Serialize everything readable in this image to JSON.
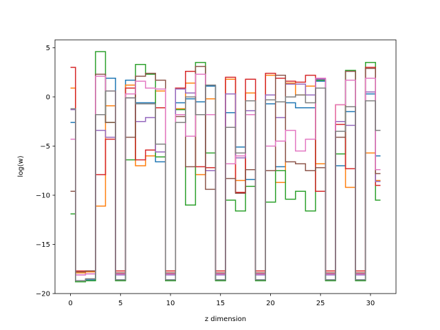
{
  "chart_data": {
    "type": "line",
    "step": "mid",
    "xlabel": "z dimension",
    "ylabel": "log(w)",
    "xlim": [
      -1.55,
      32.55
    ],
    "ylim": [
      -20,
      5.8
    ],
    "xticks": [
      0,
      5,
      10,
      15,
      20,
      25,
      30
    ],
    "yticks": [
      -20,
      -15,
      -10,
      -5,
      0,
      5
    ],
    "grid": false,
    "x": [
      0,
      1,
      2,
      3,
      4,
      5,
      6,
      7,
      8,
      9,
      10,
      11,
      12,
      13,
      14,
      15,
      16,
      17,
      18,
      19,
      20,
      21,
      22,
      23,
      24,
      25,
      26,
      27,
      28,
      29,
      30,
      31
    ],
    "series": [
      {
        "color": "#1f77b4",
        "values": [
          -2.6,
          -18.7,
          -18.6,
          -1.8,
          1.9,
          -18.6,
          1.7,
          -0.6,
          -0.6,
          -6.6,
          -18.6,
          -0.6,
          -0.2,
          -0.5,
          1.1,
          -18.6,
          -1.6,
          -5.1,
          -8.4,
          -18.6,
          -0.7,
          -7.1,
          -0.6,
          -1.1,
          -1.1,
          1.6,
          -18.6,
          -7.0,
          -1.5,
          -18.6,
          0.3,
          -6.0
        ]
      },
      {
        "color": "#ff7f0e",
        "values": [
          0.9,
          -17.9,
          -17.8,
          -11.1,
          -0.9,
          -18.0,
          1.2,
          -7.0,
          -6.0,
          0.6,
          -18.0,
          -1.2,
          1.4,
          -7.9,
          -0.2,
          -18.0,
          1.8,
          -8.5,
          0.4,
          -18.0,
          2.2,
          -8.7,
          1.4,
          0.2,
          1.1,
          -6.8,
          -18.0,
          -0.8,
          -9.2,
          -18.0,
          -5.7,
          -8.5
        ]
      },
      {
        "color": "#2ca02c",
        "values": [
          -11.9,
          -18.8,
          -18.7,
          4.6,
          -2.6,
          -18.7,
          -6.4,
          3.3,
          2.3,
          -6.1,
          -18.7,
          -1.3,
          -11.0,
          3.5,
          -5.7,
          -18.7,
          -10.5,
          -11.6,
          -9.1,
          -18.7,
          -10.7,
          -7.5,
          -10.4,
          -9.6,
          -11.6,
          1.7,
          -18.7,
          -5.8,
          2.7,
          -18.7,
          3.5,
          -10.5
        ]
      },
      {
        "color": "#d62728",
        "values": [
          3.0,
          -17.7,
          -17.7,
          -7.9,
          -4.3,
          -17.7,
          0.9,
          -6.4,
          -5.4,
          -1.1,
          -17.7,
          0.9,
          2.6,
          -7.1,
          -7.2,
          -17.7,
          2.0,
          -9.7,
          1.8,
          -17.7,
          2.4,
          1.9,
          1.6,
          1.5,
          2.2,
          -9.6,
          -17.7,
          -2.8,
          -7.3,
          -17.7,
          3.0,
          -9.0
        ]
      },
      {
        "color": "#9467bd",
        "values": [
          -1.3,
          -18.1,
          -18.0,
          -3.4,
          -4.1,
          -18.1,
          -0.1,
          -2.5,
          -2.1,
          -5.6,
          -18.1,
          0.8,
          0.4,
          -1.8,
          -7.5,
          -18.1,
          0.3,
          -6.2,
          -1.4,
          -18.1,
          0.2,
          -2.1,
          1.3,
          1.3,
          0.2,
          1.8,
          -18.1,
          -2.5,
          -2.9,
          -18.1,
          0.5,
          -8.6
        ]
      },
      {
        "color": "#8c564b",
        "values": [
          -9.6,
          -17.8,
          -17.7,
          2.3,
          -2.6,
          -17.9,
          -4.1,
          2.1,
          2.4,
          1.7,
          -17.9,
          -2.0,
          -7.1,
          3.1,
          -9.4,
          -17.9,
          -8.3,
          -9.8,
          -7.4,
          -17.9,
          -7.5,
          2.2,
          -6.6,
          -6.8,
          -7.5,
          -7.2,
          -17.9,
          -4.1,
          2.6,
          -17.9,
          2.9,
          -7.8
        ]
      },
      {
        "color": "#e377c2",
        "values": [
          -4.3,
          -18.1,
          -18.0,
          2.1,
          0.6,
          -18.0,
          0.3,
          1.6,
          0.9,
          0.8,
          -18.0,
          -1.8,
          -4.0,
          2.3,
          -1.8,
          -18.0,
          -6.8,
          -6.0,
          -1.8,
          -18.0,
          -5.0,
          -4.5,
          -3.4,
          -5.5,
          -4.3,
          1.9,
          -18.0,
          -0.8,
          1.7,
          -18.0,
          1.9,
          -7.4
        ]
      },
      {
        "color": "#7f7f7f",
        "values": [
          -1.2,
          -18.7,
          -18.5,
          -1.8,
          0.6,
          -18.6,
          -0.1,
          -0.7,
          -0.7,
          -4.8,
          -18.6,
          -2.6,
          0.0,
          -1.8,
          1.2,
          -18.6,
          -3.1,
          -5.7,
          -0.4,
          -18.6,
          -0.3,
          -0.5,
          0.0,
          0.2,
          -0.6,
          0.9,
          -18.6,
          -3.5,
          -1.0,
          -18.6,
          -0.4,
          -3.4
        ]
      }
    ]
  }
}
